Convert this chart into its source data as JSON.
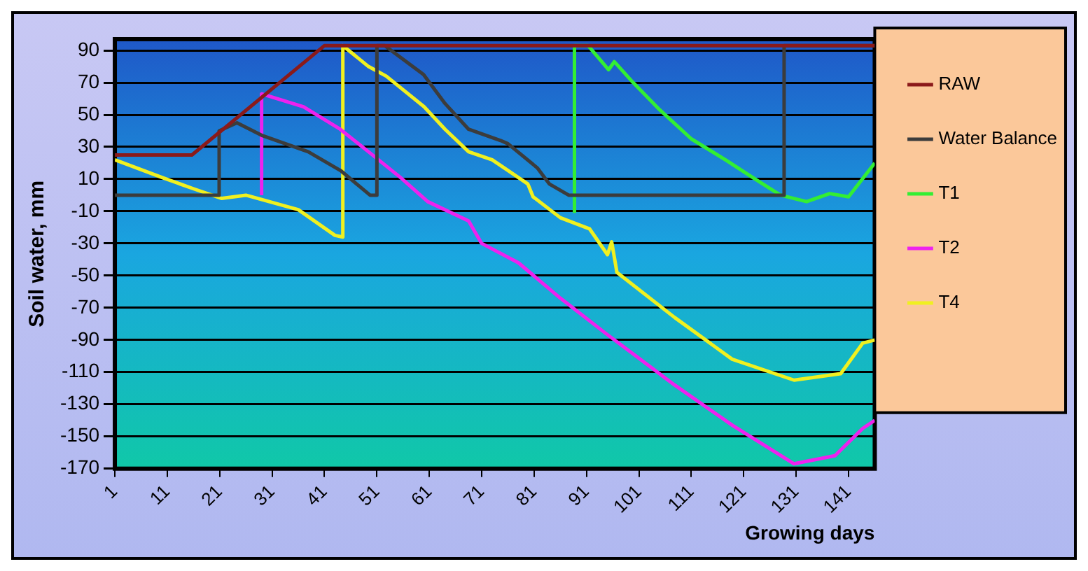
{
  "chart_data": {
    "type": "line",
    "xlabel": "Growing days",
    "ylabel": "Soil water, mm",
    "xlim": [
      1,
      146
    ],
    "xticks": [
      1,
      11,
      21,
      31,
      41,
      51,
      61,
      71,
      81,
      91,
      101,
      111,
      121,
      131,
      141
    ],
    "ylim": [
      -170,
      97
    ],
    "yticks": [
      90,
      70,
      50,
      30,
      10,
      -10,
      -30,
      -50,
      -70,
      -90,
      -110,
      -130,
      -150,
      -170
    ],
    "grid": "y",
    "legend": "right",
    "marker": "none",
    "line_style": "solid",
    "series": [
      {
        "name": "RAW",
        "color": "#8b1a1a",
        "x": [
          1,
          15.7,
          41,
          146
        ],
        "values": [
          25,
          25,
          93,
          93
        ]
      },
      {
        "name": "Water Balance",
        "color": "#3c3c3c",
        "x": [
          1,
          20.9,
          20.9,
          24.3,
          29.2,
          37.9,
          44.2,
          49.7,
          51,
          51,
          52.5,
          59.9,
          64,
          68.5,
          74.6,
          76,
          81.6,
          83.9,
          87.6,
          128.7,
          128.7,
          146
        ],
        "values": [
          0,
          0,
          40,
          45,
          37,
          27,
          15,
          0,
          0,
          93,
          93,
          75,
          57,
          41,
          34,
          32,
          17,
          7,
          0,
          0,
          93,
          93
        ]
      },
      {
        "name": "T1",
        "color": "#33ee33",
        "x": [
          88.7,
          88.7,
          91.3,
          95.2,
          96.3,
          99.9,
          105,
          111,
          117.5,
          122.7,
          128,
          133,
          137.4,
          141,
          146
        ],
        "values": [
          -11,
          93,
          93,
          78,
          83,
          70,
          53,
          35,
          22,
          11,
          0,
          -4,
          1,
          -1,
          20
        ]
      },
      {
        "name": "T2",
        "color": "#ee22ee",
        "x": [
          29,
          29,
          37,
          44,
          49.4,
          55.5,
          60.7,
          68.5,
          71,
          78,
          86,
          94.7,
          107.8,
          118.8,
          130.6,
          138.4,
          143.7,
          146
        ],
        "values": [
          0,
          63,
          55,
          41,
          27,
          11,
          -4,
          -16,
          -30,
          -42,
          -64,
          -86,
          -118,
          -143,
          -167,
          -162,
          -145,
          -140
        ]
      },
      {
        "name": "T4",
        "color": "#f0f020",
        "x": [
          1,
          10,
          16,
          21.4,
          26,
          36,
          43,
          44.5,
          44.5,
          49.4,
          52.8,
          60,
          64,
          68.5,
          73,
          79.8,
          80.8,
          86,
          91.6,
          95,
          95.8,
          96.8,
          107.8,
          118.8,
          130.6,
          139.5,
          143.7,
          146
        ],
        "values": [
          22,
          11,
          4,
          -2,
          0,
          -9,
          -25,
          -26,
          93,
          80,
          74,
          55,
          41,
          27,
          22,
          7,
          -1,
          -14,
          -21,
          -37,
          -29,
          -48,
          -76,
          -102,
          -115,
          -111,
          -92,
          -90
        ]
      }
    ]
  }
}
